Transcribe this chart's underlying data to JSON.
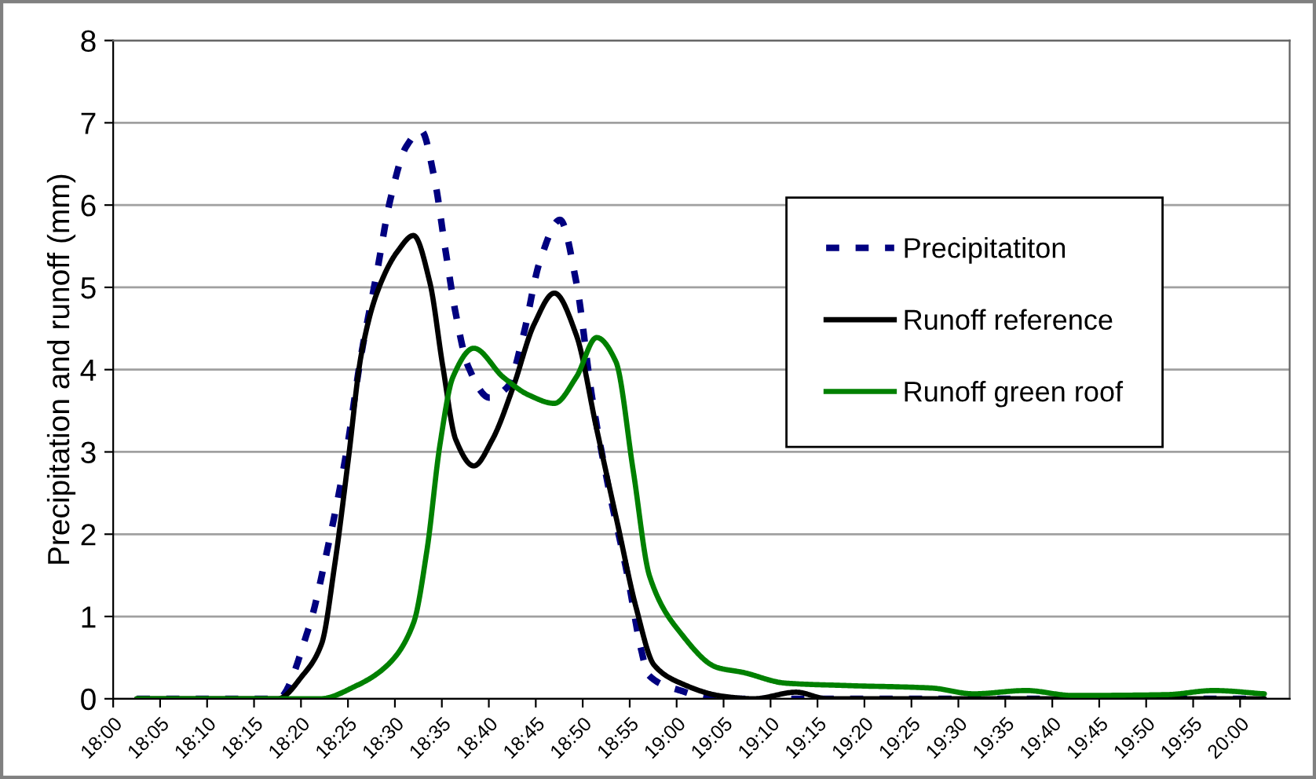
{
  "chart_data": {
    "type": "line",
    "ylabel": "Precipitation and runoff (mm)",
    "xlim": [
      18,
      20.088
    ],
    "ylim": [
      0,
      8
    ],
    "yticks": [
      0,
      1,
      2,
      3,
      4,
      5,
      6,
      7,
      8
    ],
    "xticks": [
      {
        "value": 18.0,
        "label": "18:00"
      },
      {
        "value": 18.0833,
        "label": "18:05"
      },
      {
        "value": 18.1667,
        "label": "18:10"
      },
      {
        "value": 18.25,
        "label": "18:15"
      },
      {
        "value": 18.3333,
        "label": "18:20"
      },
      {
        "value": 18.4167,
        "label": "18:25"
      },
      {
        "value": 18.5,
        "label": "18:30"
      },
      {
        "value": 18.5833,
        "label": "18:35"
      },
      {
        "value": 18.6667,
        "label": "18:40"
      },
      {
        "value": 18.75,
        "label": "18:45"
      },
      {
        "value": 18.8333,
        "label": "18:50"
      },
      {
        "value": 18.9167,
        "label": "18:55"
      },
      {
        "value": 19.0,
        "label": "19:00"
      },
      {
        "value": 19.0833,
        "label": "19:05"
      },
      {
        "value": 19.1667,
        "label": "19:10"
      },
      {
        "value": 19.25,
        "label": "19:15"
      },
      {
        "value": 19.3333,
        "label": "19:20"
      },
      {
        "value": 19.4167,
        "label": "19:25"
      },
      {
        "value": 19.5,
        "label": "19:30"
      },
      {
        "value": 19.5833,
        "label": "19:35"
      },
      {
        "value": 19.6667,
        "label": "19:40"
      },
      {
        "value": 19.75,
        "label": "19:45"
      },
      {
        "value": 19.8333,
        "label": "19:50"
      },
      {
        "value": 19.9167,
        "label": "19:55"
      },
      {
        "value": 20.0,
        "label": "20:00"
      }
    ],
    "grid": "y",
    "legend": "right",
    "marker": "none",
    "series": [
      {
        "name": "Precipitatiton",
        "color": "#000080",
        "line_style": "dashed",
        "x": [
          18.042,
          18.292,
          18.347,
          18.38,
          18.413,
          18.44,
          18.468,
          18.492,
          18.52,
          18.547,
          18.57,
          18.59,
          18.608,
          18.63,
          18.668,
          18.7,
          18.728,
          18.757,
          18.793,
          18.822,
          18.85,
          18.877,
          18.913,
          18.937,
          18.95,
          19.007,
          19.067,
          20.043
        ],
        "values": [
          0,
          0,
          0.86,
          1.81,
          2.96,
          4.17,
          5.18,
          6.07,
          6.71,
          6.9,
          6.33,
          5.44,
          4.68,
          4.04,
          3.66,
          3.79,
          4.42,
          5.31,
          5.82,
          5.06,
          3.66,
          2.64,
          1.49,
          0.6,
          0.29,
          0.1,
          0,
          0
        ]
      },
      {
        "name": "Runoff reference",
        "color": "#000000",
        "line_style": "solid",
        "x": [
          18.042,
          18.292,
          18.337,
          18.37,
          18.393,
          18.417,
          18.44,
          18.468,
          18.505,
          18.533,
          18.562,
          18.585,
          18.608,
          18.64,
          18.673,
          18.71,
          18.747,
          18.783,
          18.822,
          18.858,
          18.895,
          18.928,
          18.96,
          19.007,
          19.082,
          19.137,
          19.212,
          19.267,
          20.043
        ],
        "values": [
          0,
          0,
          0.29,
          0.67,
          1.62,
          2.89,
          4.17,
          4.93,
          5.44,
          5.63,
          5.06,
          4.04,
          3.15,
          2.83,
          3.15,
          3.79,
          4.55,
          4.93,
          4.42,
          3.28,
          2.13,
          1.11,
          0.41,
          0.19,
          0.03,
          0,
          0.08,
          0,
          0
        ]
      },
      {
        "name": "Runoff green roof",
        "color": "#008000",
        "line_style": "solid",
        "x": [
          18.042,
          18.367,
          18.432,
          18.487,
          18.533,
          18.557,
          18.58,
          18.603,
          18.64,
          18.692,
          18.738,
          18.783,
          18.822,
          18.858,
          18.892,
          18.923,
          18.952,
          19.007,
          19.072,
          19.118,
          19.193,
          19.305,
          19.453,
          19.527,
          19.62,
          19.703,
          19.87,
          19.953,
          20.043
        ],
        "values": [
          0,
          0,
          0.16,
          0.41,
          0.92,
          1.81,
          3.09,
          3.91,
          4.26,
          3.91,
          3.69,
          3.59,
          3.91,
          4.39,
          4.1,
          2.77,
          1.49,
          0.8,
          0.38,
          0.32,
          0.19,
          0.16,
          0.13,
          0.06,
          0.1,
          0.04,
          0.05,
          0.1,
          0.06
        ]
      }
    ]
  }
}
